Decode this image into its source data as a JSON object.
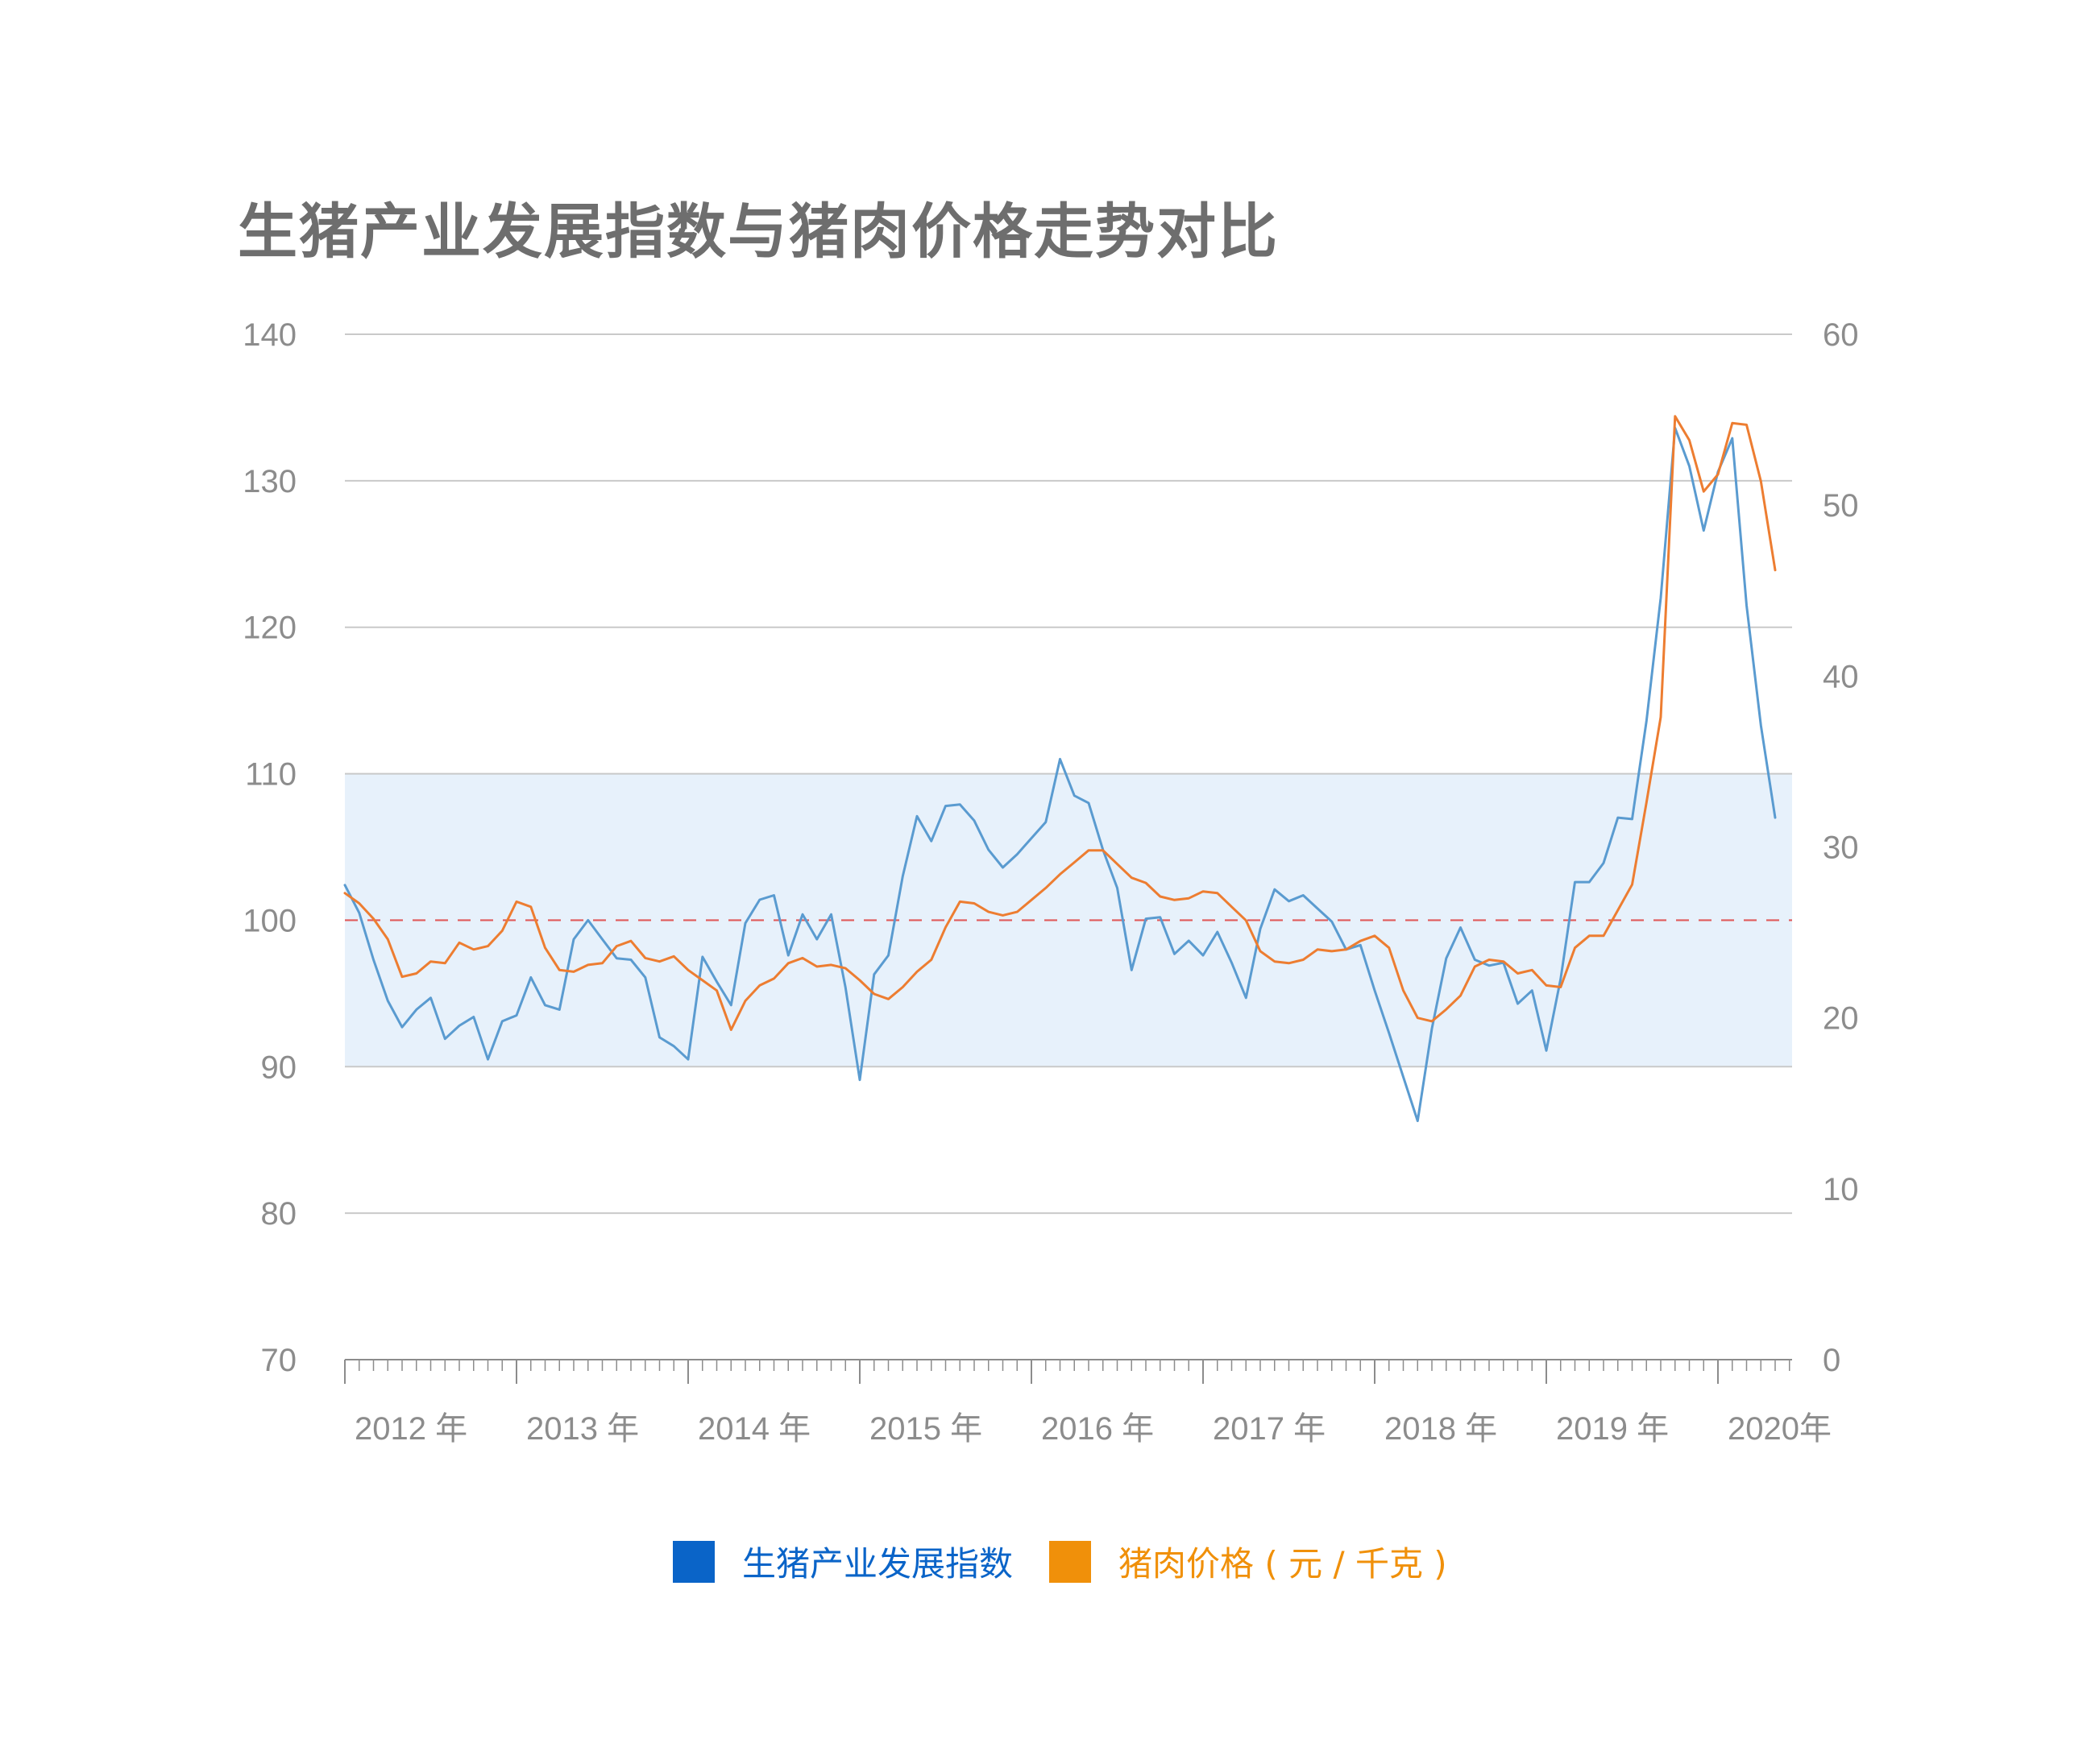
{
  "chart_data": {
    "type": "line",
    "title": "生猪产业发展指数与猪肉价格走势对比",
    "x_tick_labels": [
      "2012 年",
      "2013 年",
      "2014 年",
      "2015 年",
      "2016 年",
      "2017 年",
      "2018 年",
      "2019 年",
      "2020年"
    ],
    "y_left": {
      "ticks": [
        "140",
        "130",
        "120",
        "110",
        "100",
        "90",
        "80",
        "70"
      ],
      "range": [
        70,
        140
      ]
    },
    "y_right": {
      "ticks": [
        "60",
        "50",
        "40",
        "30",
        "20",
        "10",
        "0"
      ],
      "range": [
        0,
        60
      ]
    },
    "reference_line": {
      "value": 100,
      "label": "100",
      "color": "#cc0000",
      "style": "dashed"
    },
    "shaded_band": {
      "from": 90,
      "to": 110,
      "color": "#e7f1fb"
    },
    "grid": true,
    "legend_position": "bottom",
    "start": "2012-01",
    "series": [
      {
        "name": "生猪产业发展指数",
        "axis": "left",
        "color": "#5a9bd0",
        "legend_color": "#0a64c8",
        "values": [
          102.4,
          100.5,
          97.3,
          94.5,
          92.7,
          93.9,
          94.7,
          91.9,
          92.8,
          93.4,
          90.5,
          93.1,
          93.5,
          96.1,
          94.2,
          93.9,
          98.7,
          100,
          98.7,
          97.4,
          97.3,
          96.1,
          92,
          91.4,
          90.5,
          97.5,
          95.8,
          94.2,
          99.8,
          101.4,
          101.7,
          97.6,
          100.4,
          98.7,
          100.4,
          95.4,
          89.1,
          96.3,
          97.6,
          103,
          107.1,
          105.4,
          107.8,
          107.9,
          106.8,
          104.8,
          103.6,
          104.5,
          105.6,
          106.7,
          111.0,
          108.5,
          108.0,
          104.8,
          102.2,
          96.6,
          100.1,
          100.2,
          97.7,
          98.6,
          97.6,
          99.2,
          97.1,
          94.7,
          99.4,
          102.1,
          101.3,
          101.7,
          100.8,
          99.9,
          98.0,
          98.3,
          95.2,
          92.3,
          89.3,
          86.3,
          92.6,
          97.4,
          99.5,
          97.3,
          96.9,
          97.1,
          94.3,
          95.2,
          91.1,
          96.0,
          102.6,
          102.6,
          103.9,
          107.0,
          106.9,
          113.6,
          122.0,
          133.6,
          131.0,
          126.6,
          130.6,
          132.9,
          121.5,
          113.3,
          107.0
        ]
      },
      {
        "name": "猪肉价格 ( 元 / 千克 )",
        "axis": "right",
        "color": "#ed7d31",
        "legend_color": "#f0900a",
        "values": [
          27.3,
          26.7,
          25.8,
          24.6,
          22.4,
          22.6,
          23.3,
          23.2,
          24.4,
          24.0,
          24.2,
          25.1,
          26.8,
          26.5,
          24.1,
          22.8,
          22.7,
          23.1,
          23.2,
          24.2,
          24.5,
          23.5,
          23.3,
          23.6,
          22.8,
          22.2,
          21.6,
          19.3,
          21.0,
          21.9,
          22.3,
          23.2,
          23.5,
          23.0,
          23.1,
          22.9,
          22.2,
          21.4,
          21.1,
          21.8,
          22.7,
          23.4,
          25.3,
          26.8,
          26.7,
          26.2,
          26.0,
          26.2,
          26.9,
          27.6,
          28.4,
          29.1,
          29.8,
          29.8,
          29.0,
          28.2,
          27.9,
          27.1,
          26.9,
          27.0,
          27.4,
          27.3,
          26.5,
          25.7,
          23.9,
          23.3,
          23.2,
          23.4,
          24.0,
          23.9,
          24.0,
          24.5,
          24.8,
          24.1,
          21.6,
          20.0,
          19.8,
          20.5,
          21.3,
          23.0,
          23.4,
          23.3,
          22.6,
          22.8,
          21.9,
          21.8,
          24.1,
          24.8,
          24.8,
          26.3,
          27.8,
          32.6,
          37.6,
          55.2,
          53.8,
          50.8,
          51.8,
          54.8,
          54.7,
          51.4,
          46.2
        ]
      }
    ]
  }
}
